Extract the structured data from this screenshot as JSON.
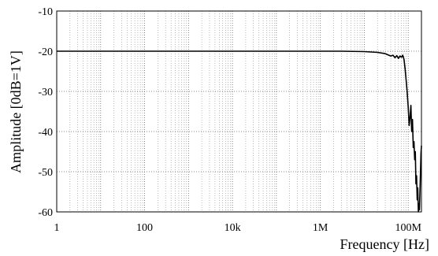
{
  "chart_data": {
    "type": "line",
    "xlabel": "Frequency [Hz]",
    "ylabel": "Amplitude [0dB=1V]",
    "xscale": "log",
    "xlim": [
      1,
      200000000
    ],
    "ylim": [
      -60,
      -10
    ],
    "grid": true,
    "x_tick_values": [
      1,
      100,
      10000,
      1000000,
      100000000
    ],
    "x_tick_labels": [
      "1",
      "100",
      "10k",
      "1M",
      "100M"
    ],
    "y_tick_values": [
      -10,
      -20,
      -30,
      -40,
      -50,
      -60
    ],
    "y_tick_labels": [
      "-10",
      "-20",
      "-30",
      "-40",
      "-50",
      "-60"
    ],
    "series": [
      {
        "color": "#000000",
        "x": [
          1,
          10,
          100,
          1000,
          10000,
          100000,
          1000000,
          3000000,
          10000000,
          20000000,
          30000000,
          40000000,
          45000000,
          50000000,
          55000000,
          60000000,
          65000000,
          70000000,
          75000000,
          80000000,
          85000000,
          90000000,
          95000000,
          100000000,
          105000000,
          110000000,
          115000000,
          120000000,
          125000000,
          130000000,
          135000000,
          140000000,
          145000000,
          150000000,
          155000000,
          160000000,
          165000000,
          170000000,
          175000000,
          180000000,
          185000000,
          190000000,
          195000000,
          200000000
        ],
        "y": [
          -20,
          -20,
          -20,
          -20,
          -20,
          -20,
          -20,
          -20,
          -20.1,
          -20.3,
          -20.6,
          -21.2,
          -21.0,
          -21.6,
          -21.1,
          -21.8,
          -21.2,
          -21.5,
          -21.0,
          -22.0,
          -24.5,
          -27.5,
          -30.5,
          -34.0,
          -38.5,
          -36.5,
          -33.5,
          -40.0,
          -37.0,
          -44.0,
          -42.5,
          -47.0,
          -45.0,
          -53.0,
          -51.0,
          -57.0,
          -54.0,
          -60.0,
          -58.0,
          -59.5,
          -55.0,
          -50.0,
          -45.5,
          -43.5
        ]
      }
    ]
  }
}
